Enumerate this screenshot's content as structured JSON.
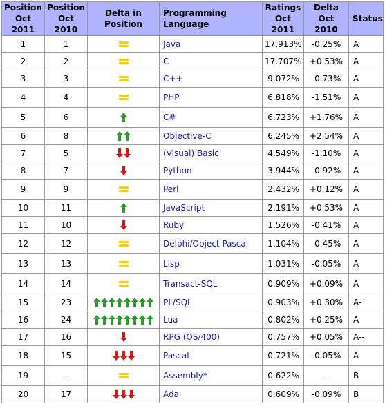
{
  "headers": {
    "pos2011": "Position Oct 2011",
    "pos2010": "Position Oct 2010",
    "delta_pos": "Delta in Position",
    "language": "Programming Language",
    "ratings": "Ratings Oct 2011",
    "delta2010": "Delta Oct 2010",
    "status": "Status"
  },
  "colors": {
    "header_bg": "#b0b4ff",
    "up_arrow": "#2e9a2e",
    "down_arrow": "#e01010",
    "equal": "#ffcc00",
    "link": "#1a1aa6"
  },
  "rows": [
    {
      "pos2011": "1",
      "pos2010": "1",
      "delta": {
        "dir": "same"
      },
      "language": "Java",
      "rating": "17.913%",
      "delta_rating": "-0.25%",
      "status": "A"
    },
    {
      "pos2011": "2",
      "pos2010": "2",
      "delta": {
        "dir": "same"
      },
      "language": "C",
      "rating": "17.707%",
      "delta_rating": "+0.53%",
      "status": "A"
    },
    {
      "pos2011": "3",
      "pos2010": "3",
      "delta": {
        "dir": "same"
      },
      "language": "C++",
      "rating": "9.072%",
      "delta_rating": "-0.73%",
      "status": "A"
    },
    {
      "pos2011": "4",
      "pos2010": "4",
      "delta": {
        "dir": "same"
      },
      "language": "PHP",
      "rating": "6.818%",
      "delta_rating": "-1.51%",
      "status": "A"
    },
    {
      "pos2011": "5",
      "pos2010": "6",
      "delta": {
        "dir": "up",
        "n": 1
      },
      "language": "C#",
      "rating": "6.723%",
      "delta_rating": "+1.76%",
      "status": "A"
    },
    {
      "pos2011": "6",
      "pos2010": "8",
      "delta": {
        "dir": "up",
        "n": 2
      },
      "language": "Objective-C",
      "rating": "6.245%",
      "delta_rating": "+2.54%",
      "status": "A"
    },
    {
      "pos2011": "7",
      "pos2010": "5",
      "delta": {
        "dir": "down",
        "n": 2
      },
      "language": "(Visual) Basic",
      "rating": "4.549%",
      "delta_rating": "-1.10%",
      "status": "A"
    },
    {
      "pos2011": "8",
      "pos2010": "7",
      "delta": {
        "dir": "down",
        "n": 1
      },
      "language": "Python",
      "rating": "3.944%",
      "delta_rating": "-0.92%",
      "status": "A"
    },
    {
      "pos2011": "9",
      "pos2010": "9",
      "delta": {
        "dir": "same"
      },
      "language": "Perl",
      "rating": "2.432%",
      "delta_rating": "+0.12%",
      "status": "A"
    },
    {
      "pos2011": "10",
      "pos2010": "11",
      "delta": {
        "dir": "up",
        "n": 1
      },
      "language": "JavaScript",
      "rating": "2.191%",
      "delta_rating": "+0.53%",
      "status": "A"
    },
    {
      "pos2011": "11",
      "pos2010": "10",
      "delta": {
        "dir": "down",
        "n": 1
      },
      "language": "Ruby",
      "rating": "1.526%",
      "delta_rating": "-0.41%",
      "status": "A"
    },
    {
      "pos2011": "12",
      "pos2010": "12",
      "delta": {
        "dir": "same"
      },
      "language": "Delphi/Object Pascal",
      "rating": "1.104%",
      "delta_rating": "-0.45%",
      "status": "A"
    },
    {
      "pos2011": "13",
      "pos2010": "13",
      "delta": {
        "dir": "same"
      },
      "language": "Lisp",
      "rating": "1.031%",
      "delta_rating": "-0.05%",
      "status": "A"
    },
    {
      "pos2011": "14",
      "pos2010": "14",
      "delta": {
        "dir": "same"
      },
      "language": "Transact-SQL",
      "rating": "0.909%",
      "delta_rating": "+0.09%",
      "status": "A"
    },
    {
      "pos2011": "15",
      "pos2010": "23",
      "delta": {
        "dir": "up",
        "n": 8
      },
      "language": "PL/SQL",
      "rating": "0.903%",
      "delta_rating": "+0.30%",
      "status": "A-"
    },
    {
      "pos2011": "16",
      "pos2010": "24",
      "delta": {
        "dir": "up",
        "n": 8
      },
      "language": "Lua",
      "rating": "0.802%",
      "delta_rating": "+0.25%",
      "status": "A"
    },
    {
      "pos2011": "17",
      "pos2010": "16",
      "delta": {
        "dir": "down",
        "n": 1
      },
      "language": "RPG (OS/400)",
      "rating": "0.757%",
      "delta_rating": "+0.05%",
      "status": "A--"
    },
    {
      "pos2011": "18",
      "pos2010": "15",
      "delta": {
        "dir": "down",
        "n": 3
      },
      "language": "Pascal",
      "rating": "0.721%",
      "delta_rating": "-0.05%",
      "status": "A"
    },
    {
      "pos2011": "19",
      "pos2010": "-",
      "delta": {
        "dir": "same"
      },
      "language": "Assembly*",
      "rating": "0.622%",
      "delta_rating": "-",
      "status": "B"
    },
    {
      "pos2011": "20",
      "pos2010": "17",
      "delta": {
        "dir": "down",
        "n": 3
      },
      "language": "Ada",
      "rating": "0.609%",
      "delta_rating": "-0.09%",
      "status": "B"
    }
  ]
}
